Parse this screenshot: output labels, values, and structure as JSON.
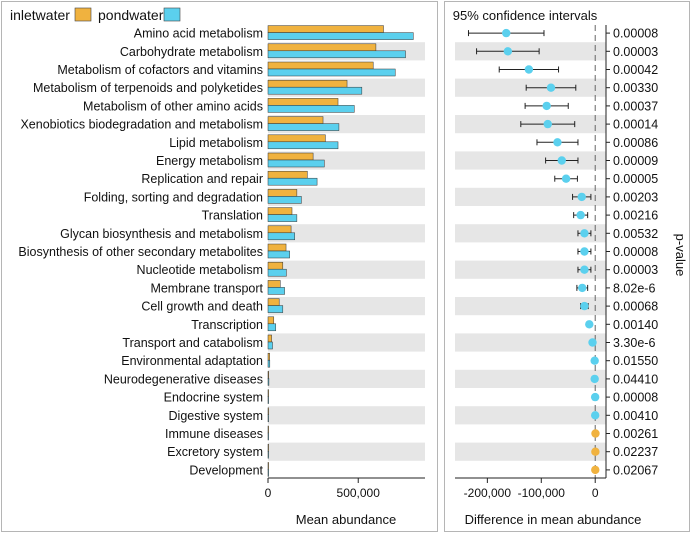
{
  "colors": {
    "inlet": "#F0B23F",
    "pond": "#5BD0EE",
    "band": "#E6E6E6",
    "grid": "#BBBBBB"
  },
  "legend": {
    "series1": "inletwater",
    "series2": "pondwater"
  },
  "chart_data": [
    {
      "type": "bar",
      "orientation": "horizontal",
      "xlabel": "Mean abundance",
      "xlim": [
        0,
        870000
      ],
      "xticks": [
        0,
        500000
      ],
      "xtick_labels": [
        "0",
        "500,000"
      ],
      "categories": [
        "Amino acid metabolism",
        "Carbohydrate metabolism",
        "Metabolism of cofactors and vitamins",
        "Metabolism of terpenoids and polyketides",
        "Metabolism of other amino acids",
        "Xenobiotics biodegradation and metabolism",
        "Lipid metabolism",
        "Energy metabolism",
        "Replication and repair",
        "Folding, sorting and degradation",
        "Translation",
        "Glycan biosynthesis and metabolism",
        "Biosynthesis of other secondary metabolites",
        "Nucleotide metabolism",
        "Membrane transport",
        "Cell growth and death",
        "Transcription",
        "Transport and catabolism",
        "Environmental adaptation",
        "Neurodegenerative diseases",
        "Endocrine system",
        "Digestive system",
        "Immune diseases",
        "Excretory system",
        "Development"
      ],
      "series": [
        {
          "name": "inletwater",
          "values": [
            640000,
            598000,
            583000,
            438000,
            388000,
            305000,
            318000,
            250000,
            218000,
            160000,
            133000,
            128000,
            100000,
            82000,
            68000,
            62000,
            32000,
            20000,
            9000,
            4000,
            1000,
            800,
            1500,
            1200,
            600
          ]
        },
        {
          "name": "pondwater",
          "values": [
            805000,
            762000,
            705000,
            520000,
            478000,
            393000,
            388000,
            312000,
            272000,
            185000,
            160000,
            148000,
            120000,
            102000,
            92000,
            82000,
            43000,
            25000,
            10000,
            5000,
            1100,
            800,
            1000,
            900,
            500
          ]
        }
      ]
    },
    {
      "type": "scatter",
      "title": "95% confidence intervals",
      "xlabel": "Difference in mean abundance",
      "ylabel": "p-value",
      "xlim": [
        -260000,
        20000
      ],
      "xticks": [
        -200000,
        -100000,
        0
      ],
      "xtick_labels": [
        "-200,000",
        "-100,000",
        "0"
      ],
      "categories": [
        "Amino acid metabolism",
        "Carbohydrate metabolism",
        "Metabolism of cofactors and vitamins",
        "Metabolism of terpenoids and polyketides",
        "Metabolism of other amino acids",
        "Xenobiotics biodegradation and metabolism",
        "Lipid metabolism",
        "Energy metabolism",
        "Replication and repair",
        "Folding, sorting and degradation",
        "Translation",
        "Glycan biosynthesis and metabolism",
        "Biosynthesis of other secondary metabolites",
        "Nucleotide metabolism",
        "Membrane transport",
        "Cell growth and death",
        "Transcription",
        "Transport and catabolism",
        "Environmental adaptation",
        "Neurodegenerative diseases",
        "Endocrine system",
        "Digestive system",
        "Immune diseases",
        "Excretory system",
        "Development"
      ],
      "estimates": [
        -165000,
        -162000,
        -123000,
        -82000,
        -90000,
        -88000,
        -70000,
        -62000,
        -54000,
        -25000,
        -27000,
        -20000,
        -20000,
        -20000,
        -24000,
        -20000,
        -11000,
        -5000,
        -1000,
        -1000,
        -100,
        -50,
        500,
        300,
        100
      ],
      "ci_low": [
        -235000,
        -220000,
        -178000,
        -128000,
        -130000,
        -138000,
        -108000,
        -92000,
        -75000,
        -42000,
        -40000,
        -32000,
        -32000,
        -32000,
        -34000,
        -27000,
        -15000,
        -7000,
        -3000,
        -2500,
        -800,
        -600,
        -500,
        -300,
        -200
      ],
      "ci_high": [
        -95000,
        -104000,
        -68000,
        -36000,
        -50000,
        -38000,
        -32000,
        -32000,
        -33000,
        -8000,
        -14000,
        -8000,
        -8000,
        -8000,
        -14000,
        -13000,
        -7000,
        -3000,
        1000,
        500,
        600,
        500,
        1500,
        900,
        400
      ],
      "higher_in": [
        "pondwater",
        "pondwater",
        "pondwater",
        "pondwater",
        "pondwater",
        "pondwater",
        "pondwater",
        "pondwater",
        "pondwater",
        "pondwater",
        "pondwater",
        "pondwater",
        "pondwater",
        "pondwater",
        "pondwater",
        "pondwater",
        "pondwater",
        "pondwater",
        "pondwater",
        "pondwater",
        "pondwater",
        "pondwater",
        "inletwater",
        "inletwater",
        "inletwater"
      ],
      "p_values": [
        "0.00008",
        "0.00003",
        "0.00042",
        "0.00330",
        "0.00037",
        "0.00014",
        "0.00086",
        "0.00009",
        "0.00005",
        "0.00203",
        "0.00216",
        "0.00532",
        "0.00008",
        "0.00003",
        "8.02e-6",
        "0.00068",
        "0.00140",
        "3.30e-6",
        "0.01550",
        "0.04410",
        "0.00008",
        "0.00410",
        "0.00261",
        "0.02237",
        "0.02067"
      ]
    }
  ]
}
